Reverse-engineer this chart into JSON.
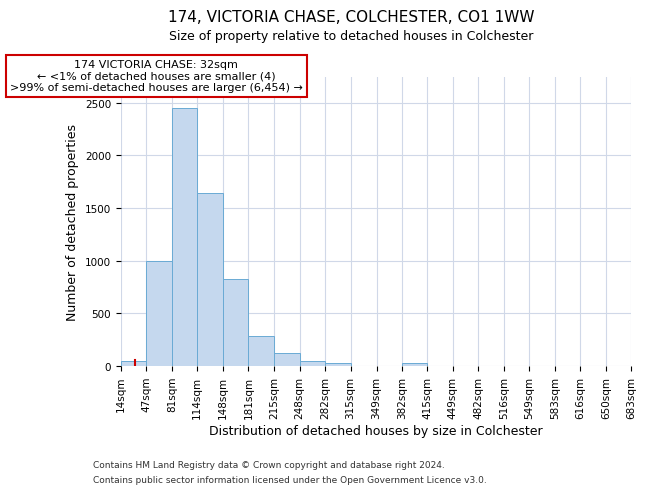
{
  "title": "174, VICTORIA CHASE, COLCHESTER, CO1 1WW",
  "subtitle": "Size of property relative to detached houses in Colchester",
  "xlabel": "Distribution of detached houses by size in Colchester",
  "ylabel": "Number of detached properties",
  "footnote1": "Contains HM Land Registry data © Crown copyright and database right 2024.",
  "footnote2": "Contains public sector information licensed under the Open Government Licence v3.0.",
  "bar_color": "#c5d8ee",
  "bar_edge_color": "#6aaad4",
  "annotation_box_color": "#cc0000",
  "annotation_line1": "174 VICTORIA CHASE: 32sqm",
  "annotation_line2": "← <1% of detached houses are smaller (4)",
  "annotation_line3": ">99% of semi-detached houses are larger (6,454) →",
  "subject_size": 32,
  "bin_edges": [
    14,
    47,
    81,
    114,
    148,
    181,
    215,
    248,
    282,
    315,
    349,
    382,
    415,
    449,
    482,
    516,
    549,
    583,
    616,
    650,
    683
  ],
  "bin_counts": [
    50,
    1000,
    2450,
    1640,
    830,
    290,
    120,
    50,
    30,
    0,
    0,
    30,
    0,
    0,
    0,
    0,
    0,
    0,
    0,
    0
  ],
  "ylim": [
    0,
    2750
  ],
  "yticks": [
    0,
    500,
    1000,
    1500,
    2000,
    2500
  ],
  "background_color": "#ffffff",
  "grid_color": "#d0d8e8",
  "title_fontsize": 11,
  "subtitle_fontsize": 9,
  "ylabel_fontsize": 9,
  "xlabel_fontsize": 9,
  "tick_fontsize": 7.5,
  "footnote_fontsize": 6.5
}
